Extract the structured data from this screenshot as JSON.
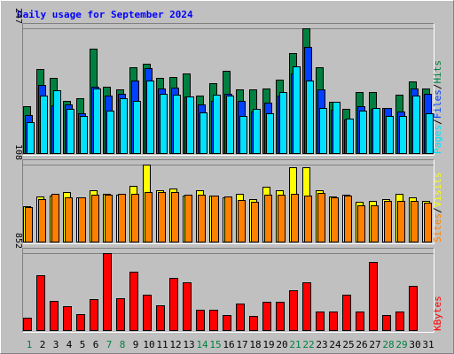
{
  "chart_data": {
    "type": "bar",
    "title": "Daily usage for September 2024",
    "days": [
      "1",
      "2",
      "3",
      "4",
      "5",
      "6",
      "7",
      "8",
      "9",
      "10",
      "11",
      "12",
      "13",
      "14",
      "15",
      "16",
      "17",
      "18",
      "19",
      "20",
      "21",
      "22",
      "23",
      "24",
      "25",
      "26",
      "27",
      "28",
      "29",
      "30",
      "31"
    ],
    "weekend_days": [
      "1",
      "7",
      "8",
      "14",
      "15",
      "21",
      "22",
      "28",
      "29"
    ],
    "colors": {
      "hits": "#008040",
      "files": "#0040ff",
      "pages": "#00e0ff",
      "visits": "#ffff00",
      "sites": "#ff8000",
      "kbytes": "#ff0000",
      "weekday_label": "#000000",
      "weekend_label": "#008040",
      "title": "#0000ff"
    },
    "panels": [
      {
        "id": "traffic",
        "max_label": "247",
        "max": 247,
        "legend": [
          {
            "label": "Pages",
            "color": "#00e0ff"
          },
          {
            "label": "/",
            "color": "#000000"
          },
          {
            "label": "Files",
            "color": "#0040ff"
          },
          {
            "label": "/",
            "color": "#000000"
          },
          {
            "label": "Hits",
            "color": "#008040"
          }
        ],
        "series": [
          {
            "name": "Hits",
            "color": "#008040",
            "values": [
              94,
              167,
              149,
              105,
              110,
              207,
              132,
              127,
              170,
              177,
              150,
              152,
              159,
              114,
              139,
              163,
              127,
              127,
              129,
              146,
              198,
              247,
              170,
              102,
              88,
              122,
              122,
              90,
              116,
              142,
              128
            ]
          },
          {
            "name": "Files",
            "color": "#0040ff",
            "values": [
              77,
              136,
              96,
              97,
              80,
              132,
              115,
              118,
              144,
              169,
              128,
              130,
              113,
              97,
              105,
              119,
              104,
              84,
              101,
              115,
              159,
              211,
              127,
              87,
              68,
              94,
              89,
              90,
              83,
              128,
              119
            ]
          },
          {
            "name": "Pages",
            "color": "#00e0ff",
            "values": [
              62,
              115,
              126,
              88,
              75,
              129,
              86,
              110,
              104,
              145,
              119,
              117,
              113,
              82,
              116,
              115,
              75,
              89,
              80,
              122,
              172,
              144,
              91,
              102,
              70,
              86,
              91,
              75,
              75,
              115,
              80
            ]
          }
        ]
      },
      {
        "id": "visitors",
        "max_label": "108",
        "max": 108,
        "legend": [
          {
            "label": "Sites",
            "color": "#ff8000"
          },
          {
            "label": "/",
            "color": "#000000"
          },
          {
            "label": "Visits",
            "color": "#ffff00"
          }
        ],
        "series": [
          {
            "name": "Visits",
            "color": "#ffff00",
            "values": [
              50,
              64,
              65,
              70,
              62,
              72,
              68,
              66,
              78,
              108,
              73,
              75,
              65,
              72,
              65,
              62,
              67,
              60,
              77,
              73,
              104,
              104,
              73,
              64,
              66,
              57,
              58,
              60,
              68,
              63,
              58
            ]
          },
          {
            "name": "Sites",
            "color": "#ff8000",
            "values": [
              49,
              60,
              68,
              63,
              63,
              66,
              66,
              67,
              68,
              70,
              70,
              70,
              66,
              66,
              65,
              64,
              59,
              57,
              66,
              66,
              68,
              65,
              69,
              62,
              65,
              51,
              52,
              58,
              58,
              58,
              55
            ]
          }
        ]
      },
      {
        "id": "volume",
        "max_label": "852",
        "max": 852,
        "legend": [
          {
            "label": "KBytes",
            "color": "#ff0000"
          }
        ],
        "series": [
          {
            "name": "KBytes",
            "color": "#ff0000",
            "values": [
              148,
              609,
              328,
              274,
              184,
              345,
              852,
              362,
              646,
              395,
              277,
              582,
              530,
              231,
              237,
              176,
              299,
              160,
              320,
              320,
              445,
              530,
              213,
              213,
              395,
              213,
              752,
              176,
              213,
              498,
              0
            ]
          }
        ]
      }
    ]
  }
}
